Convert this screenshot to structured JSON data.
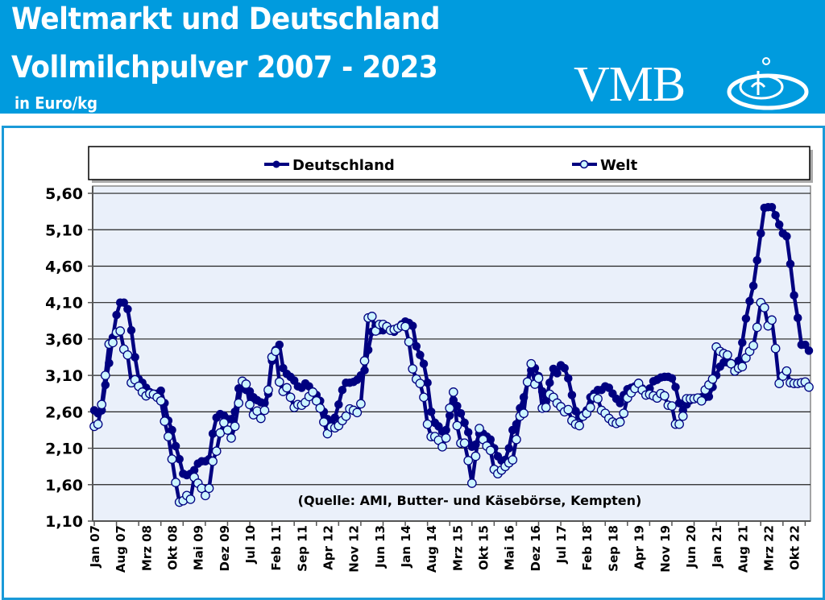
{
  "header": {
    "title_line1": "Weltmarkt und Deutschland",
    "title_line2": "Vollmilchpulver 2007 - 2023",
    "unit": "in Euro/kg",
    "logo_text": "VMB",
    "background_color": "#009bde"
  },
  "chart_data": {
    "type": "line",
    "title": "",
    "xlabel": "",
    "ylabel": "",
    "ylim": [
      1.1,
      5.7
    ],
    "y_ticks": [
      "1,10",
      "1,60",
      "2,10",
      "2,60",
      "3,10",
      "3,60",
      "4,10",
      "4,60",
      "5,10",
      "5,60"
    ],
    "y_tick_values": [
      1.1,
      1.6,
      2.1,
      2.6,
      3.1,
      3.6,
      4.1,
      4.6,
      5.1,
      5.6
    ],
    "x_tick_labels": [
      "Jan 07",
      "Aug 07",
      "Mrz 08",
      "Okt 08",
      "Mai 09",
      "Dez 09",
      "Jul 10",
      "Feb 11",
      "Sep 11",
      "Apr 12",
      "Nov 12",
      "Jun 13",
      "Jan 14",
      "Aug 14",
      "Mrz 15",
      "Okt 15",
      "Mai 16",
      "Dez 16",
      "Jul 17",
      "Feb 18",
      "Sep 18",
      "Apr 19",
      "Nov 19",
      "Jun 20",
      "Jan 21",
      "Aug 21",
      "Mrz 22",
      "Okt 22"
    ],
    "x_tick_label_every_months": 7,
    "x_tick_mark_every_months": 6,
    "grid": true,
    "legend_position": "top",
    "plot_background": "#eaf0fa",
    "annotation": "(Quelle: AMI, Butter- und Käsebörse, Kempten)",
    "series": [
      {
        "name": "Deutschland",
        "color": "#000080",
        "marker_fill": "#000080",
        "values": [
          2.62,
          2.58,
          2.62,
          2.97,
          3.27,
          3.62,
          3.93,
          4.1,
          4.1,
          4.01,
          3.72,
          3.35,
          3.05,
          3.0,
          2.93,
          2.87,
          2.85,
          2.85,
          2.89,
          2.72,
          2.48,
          2.35,
          2.13,
          1.95,
          1.75,
          1.73,
          1.75,
          1.8,
          1.89,
          1.92,
          1.92,
          1.95,
          2.3,
          2.52,
          2.57,
          2.55,
          2.5,
          2.5,
          2.6,
          2.92,
          2.95,
          2.9,
          2.88,
          2.8,
          2.76,
          2.73,
          2.72,
          2.85,
          3.3,
          3.45,
          3.52,
          3.2,
          3.12,
          3.08,
          3.03,
          2.95,
          2.93,
          2.99,
          2.95,
          2.88,
          2.83,
          2.75,
          2.6,
          2.5,
          2.47,
          2.52,
          2.7,
          2.9,
          3.0,
          3.0,
          3.01,
          3.04,
          3.1,
          3.17,
          3.45,
          3.7,
          3.78,
          3.72,
          3.72,
          3.75,
          3.72,
          3.7,
          3.75,
          3.8,
          3.84,
          3.82,
          3.78,
          3.5,
          3.38,
          3.26,
          3.0,
          2.6,
          2.45,
          2.4,
          2.33,
          2.35,
          2.55,
          2.76,
          2.68,
          2.58,
          2.45,
          2.32,
          2.12,
          2.15,
          2.3,
          2.3,
          2.26,
          2.22,
          2.1,
          1.99,
          1.93,
          1.94,
          2.1,
          2.35,
          2.43,
          2.65,
          2.8,
          3.0,
          3.17,
          3.2,
          3.09,
          2.88,
          2.74,
          3.0,
          3.19,
          3.13,
          3.24,
          3.2,
          3.06,
          2.83,
          2.61,
          2.54,
          2.56,
          2.62,
          2.8,
          2.85,
          2.9,
          2.9,
          2.95,
          2.93,
          2.85,
          2.78,
          2.72,
          2.83,
          2.91,
          2.93,
          2.95,
          3.0,
          2.92,
          2.88,
          2.92,
          3.02,
          3.04,
          3.07,
          3.08,
          3.08,
          3.06,
          2.94,
          2.72,
          2.62,
          2.7,
          2.76,
          2.78,
          2.79,
          2.8,
          2.8,
          2.81,
          2.94,
          3.1,
          3.22,
          3.28,
          3.28,
          3.27,
          3.24,
          3.3,
          3.55,
          3.88,
          4.12,
          4.33,
          4.68,
          5.05,
          5.4,
          5.41,
          5.41,
          5.3,
          5.17,
          5.05,
          5.01,
          4.63,
          4.2,
          3.89,
          3.52,
          3.52,
          3.44
        ]
      },
      {
        "name": "Welt",
        "color": "#000080",
        "marker_fill": "#ccf4ff",
        "values": [
          2.4,
          2.43,
          2.7,
          3.1,
          3.53,
          3.55,
          3.69,
          3.71,
          3.46,
          3.38,
          3.0,
          3.04,
          2.95,
          2.87,
          2.82,
          2.85,
          2.84,
          2.8,
          2.75,
          2.47,
          2.26,
          1.95,
          1.63,
          1.36,
          1.38,
          1.45,
          1.4,
          1.7,
          1.62,
          1.55,
          1.45,
          1.55,
          1.92,
          2.06,
          2.31,
          2.45,
          2.35,
          2.24,
          2.4,
          2.72,
          3.02,
          2.98,
          2.7,
          2.56,
          2.61,
          2.51,
          2.62,
          2.9,
          3.35,
          3.43,
          3.01,
          2.88,
          2.93,
          2.8,
          2.66,
          2.7,
          2.69,
          2.73,
          2.81,
          2.87,
          2.75,
          2.65,
          2.46,
          2.3,
          2.39,
          2.38,
          2.41,
          2.48,
          2.54,
          2.64,
          2.62,
          2.59,
          2.71,
          3.3,
          3.89,
          3.91,
          3.71,
          3.8,
          3.8,
          3.77,
          3.72,
          3.73,
          3.75,
          3.78,
          3.77,
          3.56,
          3.19,
          3.05,
          2.99,
          2.8,
          2.43,
          2.26,
          2.26,
          2.21,
          2.12,
          2.24,
          2.65,
          2.87,
          2.41,
          2.17,
          2.17,
          1.93,
          1.62,
          1.99,
          2.37,
          2.22,
          2.13,
          2.07,
          1.81,
          1.75,
          1.8,
          1.85,
          1.9,
          1.94,
          2.22,
          2.54,
          2.58,
          3.01,
          3.26,
          2.98,
          3.06,
          2.65,
          2.66,
          2.84,
          2.8,
          2.72,
          2.67,
          2.6,
          2.63,
          2.48,
          2.43,
          2.41,
          2.54,
          2.58,
          2.66,
          2.8,
          2.78,
          2.62,
          2.58,
          2.51,
          2.46,
          2.44,
          2.46,
          2.58,
          2.79,
          2.86,
          2.92,
          2.99,
          2.9,
          2.83,
          2.84,
          2.82,
          2.79,
          2.85,
          2.82,
          2.69,
          2.68,
          2.43,
          2.43,
          2.54,
          2.78,
          2.78,
          2.78,
          2.79,
          2.75,
          2.9,
          2.97,
          3.05,
          3.49,
          3.43,
          3.4,
          3.38,
          3.26,
          3.16,
          3.2,
          3.22,
          3.34,
          3.43,
          3.51,
          3.76,
          4.1,
          4.03,
          3.78,
          3.86,
          3.47,
          2.99,
          3.09,
          3.16,
          3.0,
          2.99,
          2.99,
          3.0,
          3.01,
          2.94
        ]
      }
    ]
  }
}
